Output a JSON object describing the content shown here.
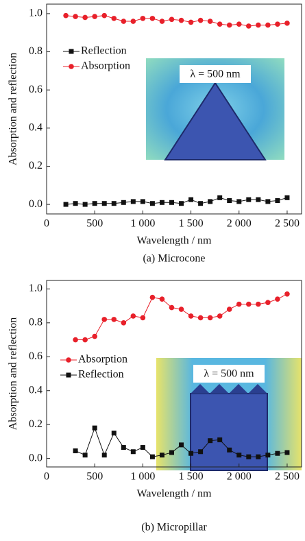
{
  "chart_data": [
    {
      "type": "line",
      "xlabel": "Wavelength / nm",
      "ylabel": "Absorption and reflection",
      "caption": "(a) Microcone",
      "inset_label": "λ = 500 nm",
      "x": [
        200,
        300,
        400,
        500,
        600,
        700,
        800,
        900,
        1000,
        1100,
        1200,
        1300,
        1400,
        1500,
        1600,
        1700,
        1800,
        1900,
        2000,
        2100,
        2200,
        2300,
        2400,
        2500
      ],
      "series": [
        {
          "name": "Reflection",
          "color": "#111111",
          "marker": "square",
          "values": [
            0,
            0.005,
            0,
            0.005,
            0.005,
            0.005,
            0.01,
            0.015,
            0.015,
            0.005,
            0.01,
            0.01,
            0.005,
            0.025,
            0.005,
            0.015,
            0.035,
            0.02,
            0.015,
            0.025,
            0.025,
            0.015,
            0.02,
            0.035
          ]
        },
        {
          "name": "Absorption",
          "color": "#e8202a",
          "marker": "circle",
          "values": [
            0.99,
            0.985,
            0.98,
            0.985,
            0.99,
            0.975,
            0.96,
            0.96,
            0.975,
            0.975,
            0.96,
            0.97,
            0.965,
            0.955,
            0.965,
            0.96,
            0.945,
            0.94,
            0.945,
            0.935,
            0.94,
            0.94,
            0.945,
            0.95
          ]
        }
      ],
      "xlim": [
        0,
        2650
      ],
      "ylim": [
        -0.05,
        1.05
      ],
      "xticks": [
        0,
        500,
        {
          "value": 1000,
          "label": "1 000"
        },
        {
          "value": 1500,
          "label": "1 500"
        },
        {
          "value": 2000,
          "label": "2 000"
        },
        {
          "value": 2500,
          "label": "2 500"
        }
      ],
      "yticks": [
        {
          "value": 0,
          "label": "0.0"
        },
        0.2,
        0.4,
        0.6,
        0.8,
        {
          "value": 1,
          "label": "1.0"
        }
      ]
    },
    {
      "type": "line",
      "xlabel": "Wavelength / nm",
      "ylabel": "Absorption and reflection",
      "caption": "(b) Micropillar",
      "inset_label": "λ = 500 nm",
      "x": [
        300,
        400,
        500,
        600,
        700,
        800,
        900,
        1000,
        1100,
        1200,
        1300,
        1400,
        1500,
        1600,
        1700,
        1800,
        1900,
        2000,
        2100,
        2200,
        2300,
        2400,
        2500
      ],
      "series": [
        {
          "name": "Absorption",
          "color": "#e8202a",
          "marker": "circle",
          "values": [
            0.7,
            0.7,
            0.72,
            0.82,
            0.82,
            0.8,
            0.84,
            0.83,
            0.95,
            0.94,
            0.89,
            0.88,
            0.84,
            0.83,
            0.83,
            0.84,
            0.88,
            0.91,
            0.91,
            0.91,
            0.92,
            0.94,
            0.97
          ]
        },
        {
          "name": "Reflection",
          "color": "#111111",
          "marker": "square",
          "values": [
            0.045,
            0.02,
            0.18,
            0.02,
            0.15,
            0.065,
            0.04,
            0.065,
            0.01,
            0.02,
            0.035,
            0.08,
            0.03,
            0.04,
            0.105,
            0.11,
            0.05,
            0.02,
            0.01,
            0.01,
            0.02,
            0.03,
            0.035
          ]
        }
      ],
      "xlim": [
        0,
        2650
      ],
      "ylim": [
        -0.05,
        1.05
      ],
      "xticks": [
        0,
        500,
        {
          "value": 1000,
          "label": "1 000"
        },
        {
          "value": 1500,
          "label": "1 500"
        },
        {
          "value": 2000,
          "label": "2 000"
        },
        {
          "value": 2500,
          "label": "2 500"
        }
      ],
      "yticks": [
        {
          "value": 0,
          "label": "0.0"
        },
        0.2,
        0.4,
        0.6,
        0.8,
        {
          "value": 1,
          "label": "1.0"
        }
      ]
    }
  ]
}
